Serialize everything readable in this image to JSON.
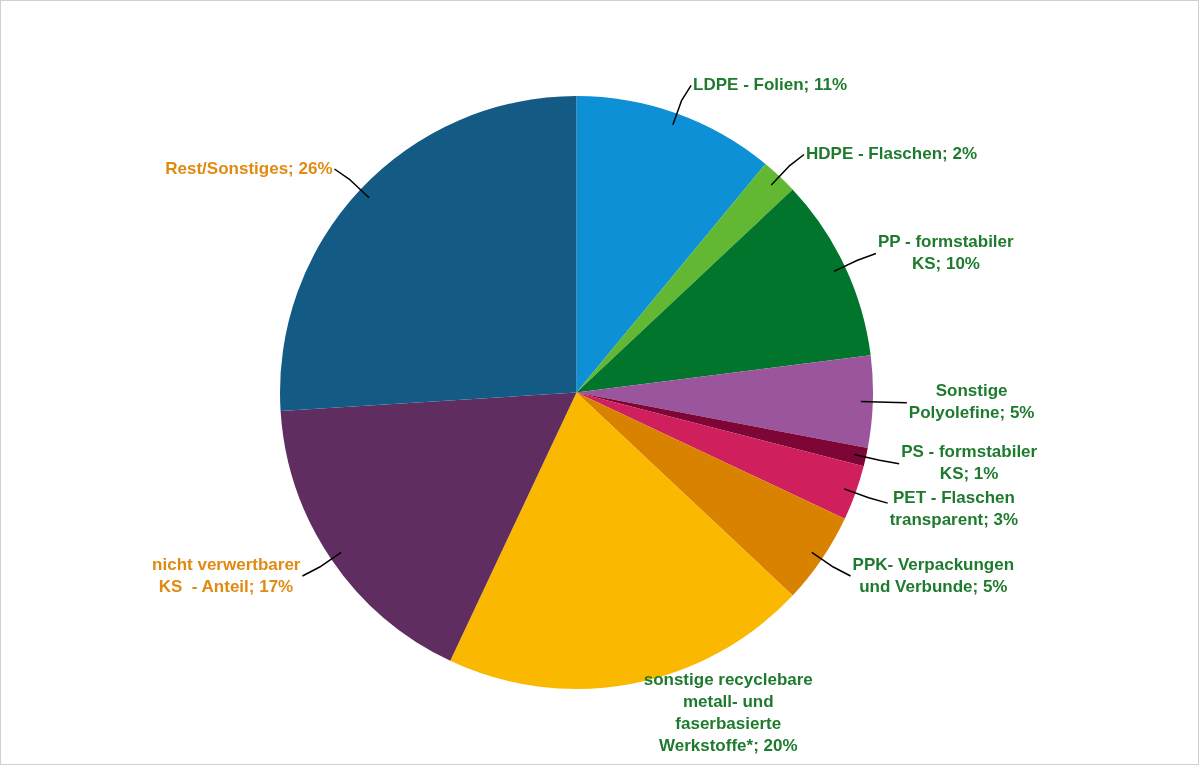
{
  "chart_data": {
    "type": "pie",
    "categories": [
      "LDPE - Folien",
      "HDPE - Flaschen",
      "PP - formstabiler KS",
      "Sonstige Polyolefine",
      "PS - formstabiler KS",
      "PET - Flaschen transparent",
      "PPK- Verpackungen und Verbunde",
      "sonstige recyclebare metall- und faserbasierte Werkstoffe*",
      "nicht verwertbarer KS  - Anteil",
      "Rest/Sonstiges"
    ],
    "values": [
      11,
      2,
      10,
      5,
      1,
      3,
      5,
      20,
      17,
      26
    ],
    "colors": [
      "#0d90d6",
      "#62b832",
      "#00752b",
      "#9a559c",
      "#7d0637",
      "#cf1f5c",
      "#d98200",
      "#fab800",
      "#5f2d5f",
      "#135b85"
    ],
    "value_labels": [
      "11%",
      "2%",
      "10%",
      "5%",
      "1%",
      "3%",
      "5%",
      "20%",
      "17%",
      "26%"
    ],
    "legend": false
  }
}
